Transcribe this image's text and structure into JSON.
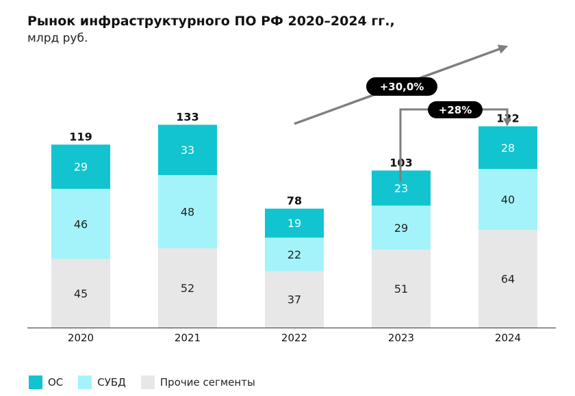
{
  "title": "Рынок инфраструктурного ПО РФ 2020–2024 гг.,",
  "subtitle": "млрд руб.",
  "colors": {
    "os": "#12c4cf",
    "dbms": "#a4f3fa",
    "other": "#e7e7e7",
    "arrow": "#7f7f7f",
    "badge": "#000000"
  },
  "chart_data": {
    "type": "bar",
    "stacked": true,
    "title": "Рынок инфраструктурного ПО РФ 2020–2024 гг.,",
    "subtitle": "млрд руб.",
    "categories": [
      "2020",
      "2021",
      "2022",
      "2023",
      "2024"
    ],
    "series": [
      {
        "name": "Прочие сегменты",
        "values": [
          45,
          52,
          37,
          51,
          64
        ]
      },
      {
        "name": "СУБД",
        "values": [
          46,
          48,
          22,
          29,
          40
        ]
      },
      {
        "name": "ОС",
        "values": [
          29,
          33,
          19,
          23,
          28
        ]
      }
    ],
    "totals": [
      "119",
      "133",
      "78",
      "103",
      "132"
    ],
    "ylim": [
      0,
      140
    ],
    "grid": false,
    "legend_position": "bottom-left",
    "annotations": [
      {
        "label": "+30,0%",
        "kind": "trend-arrow"
      },
      {
        "label": "+28%",
        "kind": "bracket-arrow",
        "from": "2023",
        "to": "2024"
      }
    ]
  },
  "legend": [
    {
      "label": "ОС",
      "color": "#12c4cf"
    },
    {
      "label": "СУБД",
      "color": "#a4f3fa"
    },
    {
      "label": "Прочие сегменты",
      "color": "#e7e7e7"
    }
  ]
}
